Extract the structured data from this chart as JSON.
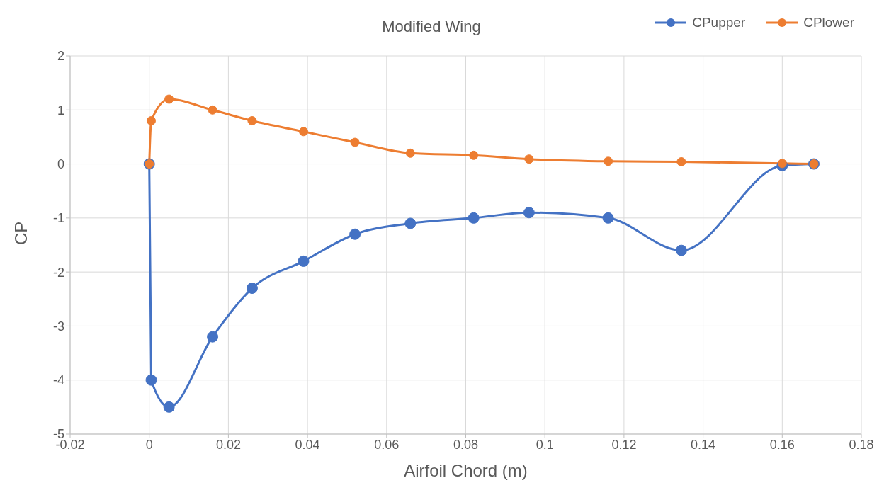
{
  "chart_data": {
    "type": "line",
    "title": "Modified Wing",
    "xlabel": "Airfoil Chord (m)",
    "ylabel": "CP",
    "xlim": [
      -0.02,
      0.18
    ],
    "xticks": [
      -0.02,
      0,
      0.02,
      0.04,
      0.06,
      0.08,
      0.1,
      0.12,
      0.14,
      0.16,
      0.18
    ],
    "ylim": [
      -5,
      2
    ],
    "yticks": [
      -5,
      -4,
      -3,
      -2,
      -1,
      0,
      1,
      2
    ],
    "grid": true,
    "legend": "top right",
    "marker": "circle",
    "line_style": "solid",
    "series": [
      {
        "name": "CPupper",
        "color": "#4472c4",
        "x": [
          0,
          0.0005,
          0.005,
          0.016,
          0.026,
          0.039,
          0.052,
          0.066,
          0.082,
          0.096,
          0.116,
          0.1345,
          0.16,
          0.168
        ],
        "values": [
          0,
          -4,
          -4.5,
          -3.2,
          -2.3,
          -1.8,
          -1.3,
          -1.1,
          -1,
          -0.9,
          -1,
          -1.6,
          -0.03,
          0
        ]
      },
      {
        "name": "CPlower",
        "color": "#ed7d31",
        "x": [
          0,
          0.0005,
          0.005,
          0.016,
          0.026,
          0.039,
          0.052,
          0.066,
          0.082,
          0.096,
          0.116,
          0.1345,
          0.16,
          0.168
        ],
        "values": [
          0,
          0.8,
          1.2,
          1,
          0.8,
          0.6,
          0.4,
          0.2,
          0.16,
          0.09,
          0.05,
          0.04,
          0.01,
          0
        ]
      }
    ]
  }
}
